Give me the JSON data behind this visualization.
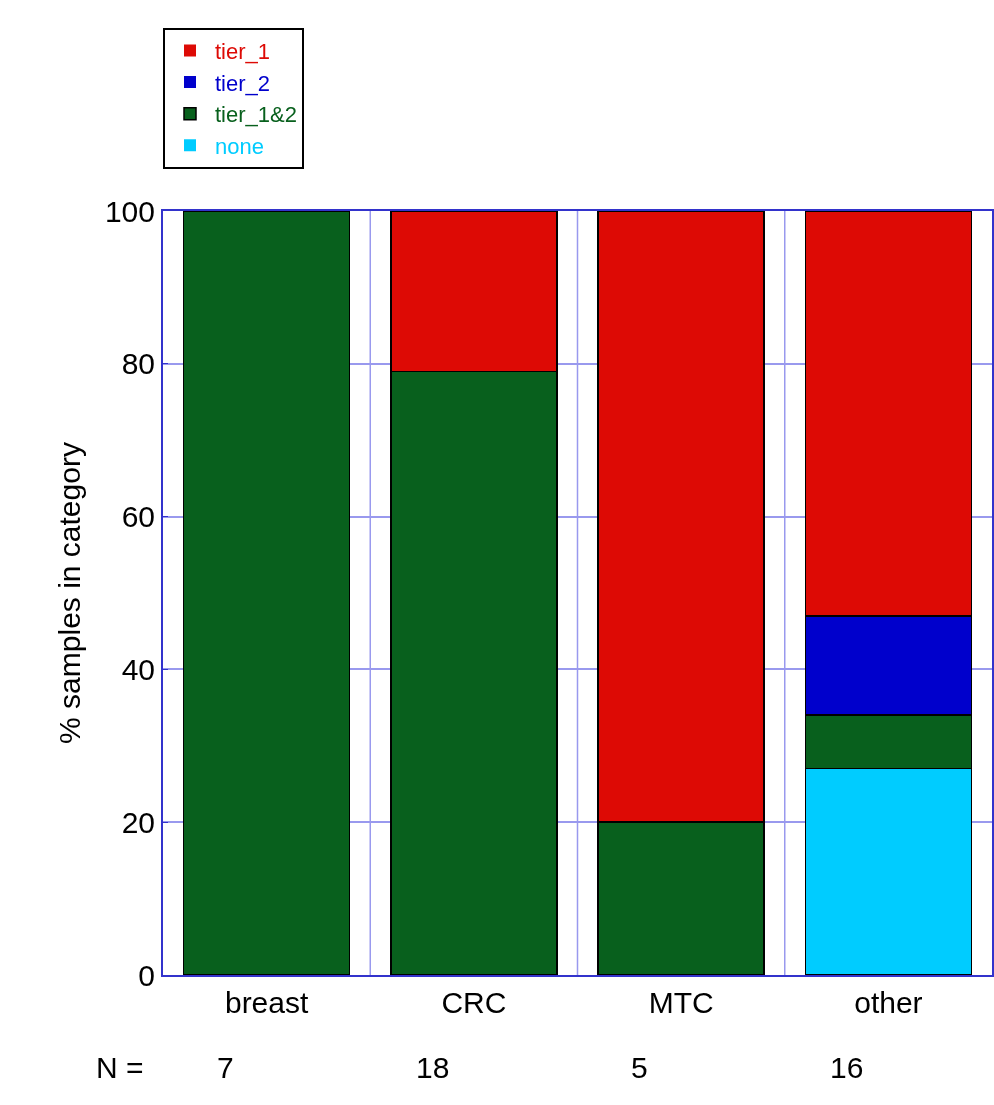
{
  "chart_data": {
    "type": "bar",
    "stacked": true,
    "ylabel": "% samples in category",
    "categories": [
      "breast",
      "CRC",
      "MTC",
      "other"
    ],
    "series": [
      {
        "name": "none",
        "color": "#00ccff",
        "values": [
          0,
          0,
          0,
          27
        ]
      },
      {
        "name": "tier_1&2",
        "color": "#08601d",
        "values": [
          100,
          79,
          20,
          7
        ]
      },
      {
        "name": "tier_2",
        "color": "#0000cc",
        "values": [
          0,
          0,
          0,
          13
        ]
      },
      {
        "name": "tier_1",
        "color": "#dd0a05",
        "values": [
          0,
          21,
          80,
          53
        ]
      }
    ],
    "ylim": [
      0,
      100
    ],
    "yticks": [
      0,
      20,
      40,
      60,
      80,
      100
    ],
    "grid": true,
    "legend": "top left",
    "annotations": [
      "N =",
      "7",
      "18",
      "5",
      "16"
    ]
  }
}
